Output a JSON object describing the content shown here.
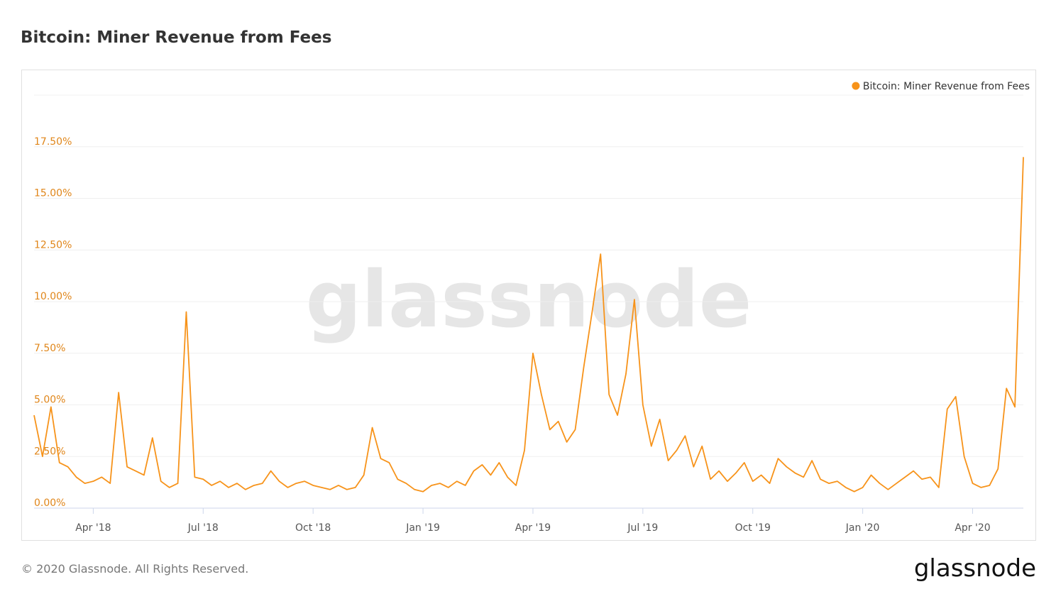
{
  "chart_data": {
    "type": "line",
    "title": "Bitcoin: Miner Revenue from Fees",
    "watermark": "glassnode",
    "categories": [
      null,
      null,
      null,
      null,
      null,
      null,
      null,
      "Apr '18",
      null,
      null,
      null,
      null,
      null,
      null,
      null,
      null,
      null,
      null,
      null,
      null,
      "Jul '18",
      null,
      null,
      null,
      null,
      null,
      null,
      null,
      null,
      null,
      null,
      null,
      null,
      "Oct '18",
      null,
      null,
      null,
      null,
      null,
      null,
      null,
      null,
      null,
      null,
      null,
      null,
      "Jan '19",
      null,
      null,
      null,
      null,
      null,
      null,
      null,
      null,
      null,
      null,
      null,
      null,
      "Apr '19",
      null,
      null,
      null,
      null,
      null,
      null,
      null,
      null,
      null,
      null,
      null,
      null,
      "Jul '19",
      null,
      null,
      null,
      null,
      null,
      null,
      null,
      null,
      null,
      null,
      null,
      null,
      "Oct '19",
      null,
      null,
      null,
      null,
      null,
      null,
      null,
      null,
      null,
      null,
      null,
      null,
      "Jan '20",
      null,
      null,
      null,
      null,
      null,
      null,
      null,
      null,
      null,
      null,
      null,
      null,
      "Apr '20",
      null,
      null,
      null,
      null,
      null,
      null
    ],
    "series": [
      {
        "name": "Bitcoin: Miner Revenue from Fees",
        "color": "#f7931a",
        "values": [
          4.5,
          2.5,
          4.9,
          2.2,
          2.0,
          1.5,
          1.2,
          1.3,
          1.5,
          1.2,
          5.6,
          2.0,
          1.8,
          1.6,
          3.4,
          1.3,
          1.0,
          1.2,
          9.5,
          1.5,
          1.4,
          1.1,
          1.3,
          1.0,
          1.2,
          0.9,
          1.1,
          1.2,
          1.8,
          1.3,
          1.0,
          1.2,
          1.3,
          1.1,
          1.0,
          0.9,
          1.1,
          0.9,
          1.0,
          1.6,
          3.9,
          2.4,
          2.2,
          1.4,
          1.2,
          0.9,
          0.8,
          1.1,
          1.2,
          1.0,
          1.3,
          1.1,
          1.8,
          2.1,
          1.6,
          2.2,
          1.5,
          1.1,
          2.8,
          7.5,
          5.5,
          3.8,
          4.2,
          3.2,
          3.8,
          6.8,
          9.5,
          12.3,
          5.5,
          4.5,
          6.5,
          10.1,
          5.0,
          3.0,
          4.3,
          2.3,
          2.8,
          3.5,
          2.0,
          3.0,
          1.4,
          1.8,
          1.3,
          1.7,
          2.2,
          1.3,
          1.6,
          1.2,
          2.4,
          2.0,
          1.7,
          1.5,
          2.3,
          1.4,
          1.2,
          1.3,
          1.0,
          0.8,
          1.0,
          1.6,
          1.2,
          0.9,
          1.2,
          1.5,
          1.8,
          1.4,
          1.5,
          1.0,
          4.8,
          5.4,
          2.5,
          1.2,
          1.0,
          1.1,
          1.9,
          5.8,
          4.9,
          17.0
        ]
      }
    ],
    "ylim": [
      0,
      20
    ],
    "yticks": [
      {
        "value": 0,
        "label": "0.00%"
      },
      {
        "value": 2.5,
        "label": "2.50%"
      },
      {
        "value": 5,
        "label": "5.00%"
      },
      {
        "value": 7.5,
        "label": "7.50%"
      },
      {
        "value": 10,
        "label": "10.00%"
      },
      {
        "value": 12.5,
        "label": "12.50%"
      },
      {
        "value": 15,
        "label": "15.00%"
      },
      {
        "value": 17.5,
        "label": "17.50%"
      }
    ],
    "grid": true,
    "legend": "top-right"
  },
  "footer": {
    "copyright": "© 2020 Glassnode. All Rights Reserved.",
    "brand": "glassnode"
  }
}
